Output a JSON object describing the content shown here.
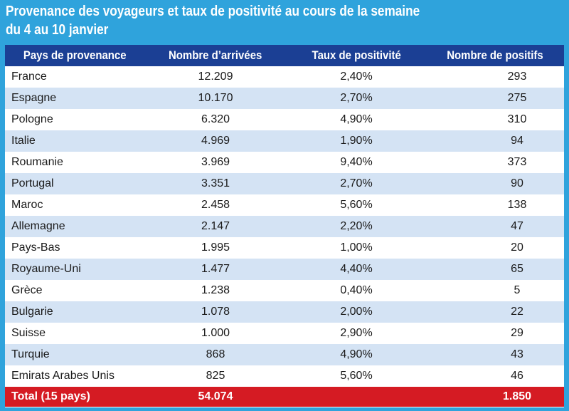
{
  "title": {
    "line1": "Provenance des voyageurs et taux de positivité au cours de la semaine",
    "line2": "du 4 au 10 janvier"
  },
  "table": {
    "headers": [
      "Pays de provenance",
      "Nombre d’arrivées",
      "Taux de positivité",
      "Nombre de positifs"
    ],
    "rows": [
      {
        "country": "France",
        "arrivals": "12.209",
        "rate": "2,40%",
        "positives": "293"
      },
      {
        "country": "Espagne",
        "arrivals": "10.170",
        "rate": "2,70%",
        "positives": "275"
      },
      {
        "country": "Pologne",
        "arrivals": "6.320",
        "rate": "4,90%",
        "positives": "310"
      },
      {
        "country": "Italie",
        "arrivals": "4.969",
        "rate": "1,90%",
        "positives": "94"
      },
      {
        "country": "Roumanie",
        "arrivals": "3.969",
        "rate": "9,40%",
        "positives": "373"
      },
      {
        "country": "Portugal",
        "arrivals": "3.351",
        "rate": "2,70%",
        "positives": "90"
      },
      {
        "country": "Maroc",
        "arrivals": "2.458",
        "rate": "5,60%",
        "positives": "138"
      },
      {
        "country": "Allemagne",
        "arrivals": "2.147",
        "rate": "2,20%",
        "positives": "47"
      },
      {
        "country": "Pays-Bas",
        "arrivals": "1.995",
        "rate": "1,00%",
        "positives": "20"
      },
      {
        "country": "Royaume-Uni",
        "arrivals": "1.477",
        "rate": "4,40%",
        "positives": "65"
      },
      {
        "country": "Grèce",
        "arrivals": "1.238",
        "rate": "0,40%",
        "positives": "5"
      },
      {
        "country": "Bulgarie",
        "arrivals": "1.078",
        "rate": "2,00%",
        "positives": "22"
      },
      {
        "country": "Suisse",
        "arrivals": "1.000",
        "rate": "2,90%",
        "positives": "29"
      },
      {
        "country": "Turquie",
        "arrivals": "868",
        "rate": "4,90%",
        "positives": "43"
      },
      {
        "country": "Emirats Arabes Unis",
        "arrivals": "825",
        "rate": "5,60%",
        "positives": "46"
      }
    ],
    "total": {
      "label": "Total (15 pays)",
      "arrivals": "54.074",
      "rate": "",
      "positives": "1.850"
    }
  },
  "colors": {
    "background": "#2fa3dc",
    "header": "#1b3f94",
    "stripe": "#d4e3f4",
    "total_row": "#d51b23"
  }
}
